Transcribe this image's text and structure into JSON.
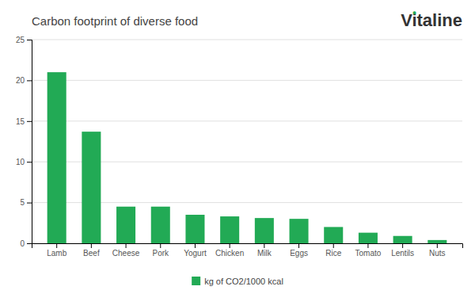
{
  "chart_data": {
    "type": "bar",
    "title": "Carbon footprint of diverse food",
    "categories": [
      "Lamb",
      "Beef",
      "Cheese",
      "Pork",
      "Yogurt",
      "Chicken",
      "Milk",
      "Eggs",
      "Rice",
      "Tomato",
      "Lentils",
      "Nuts"
    ],
    "series": [
      {
        "name": "kg of CO2/1000 kcal",
        "color": "#22aa55",
        "values": [
          21.0,
          13.7,
          4.5,
          4.5,
          3.5,
          3.3,
          3.1,
          3.0,
          2.0,
          1.3,
          0.9,
          0.4
        ]
      }
    ],
    "ylim": [
      0,
      25
    ],
    "yticks": [
      0,
      5,
      10,
      15,
      20,
      25
    ],
    "grid": true,
    "legend": "bottom",
    "annotations": [
      {
        "text": "Vitaline",
        "color": "#333333"
      },
      {
        "text": "●",
        "color": "#22aa55"
      }
    ]
  }
}
